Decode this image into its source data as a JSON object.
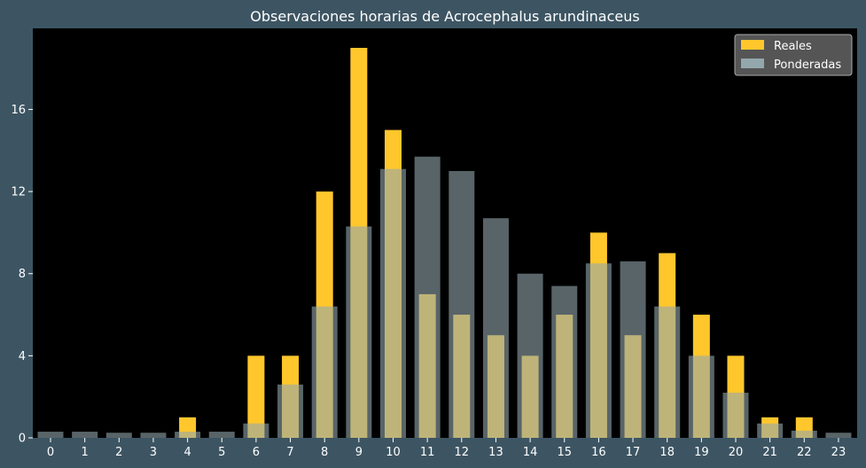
{
  "chart_data": {
    "type": "bar",
    "title": "Observaciones horarias de Acrocephalus arundinaceus",
    "xlabel": "",
    "ylabel": "",
    "categories": [
      "0",
      "1",
      "2",
      "3",
      "4",
      "5",
      "6",
      "7",
      "8",
      "9",
      "10",
      "11",
      "12",
      "13",
      "14",
      "15",
      "16",
      "17",
      "18",
      "19",
      "20",
      "21",
      "22",
      "23"
    ],
    "series": [
      {
        "name": "Reales",
        "color": "#ffc72c",
        "values": [
          0,
          0,
          0,
          0,
          1,
          0,
          4,
          4,
          12,
          19,
          15,
          7,
          6,
          5,
          4,
          6,
          10,
          5,
          9,
          6,
          4,
          1,
          1,
          0
        ]
      },
      {
        "name": "Ponderadas",
        "color": "#93a7ad",
        "values": [
          0.3,
          0.3,
          0.25,
          0.25,
          0.3,
          0.3,
          0.7,
          2.6,
          6.4,
          10.3,
          13.1,
          13.7,
          13.0,
          10.7,
          8.0,
          7.4,
          8.5,
          8.6,
          6.4,
          4.0,
          2.2,
          0.7,
          0.35,
          0.25
        ]
      }
    ],
    "yticks": [
      0,
      4,
      8,
      12,
      16
    ],
    "ylim": [
      0,
      19.95
    ],
    "grid": false,
    "legend_position": "top-right",
    "background": "#3d5563",
    "plot_background": "#000000"
  }
}
